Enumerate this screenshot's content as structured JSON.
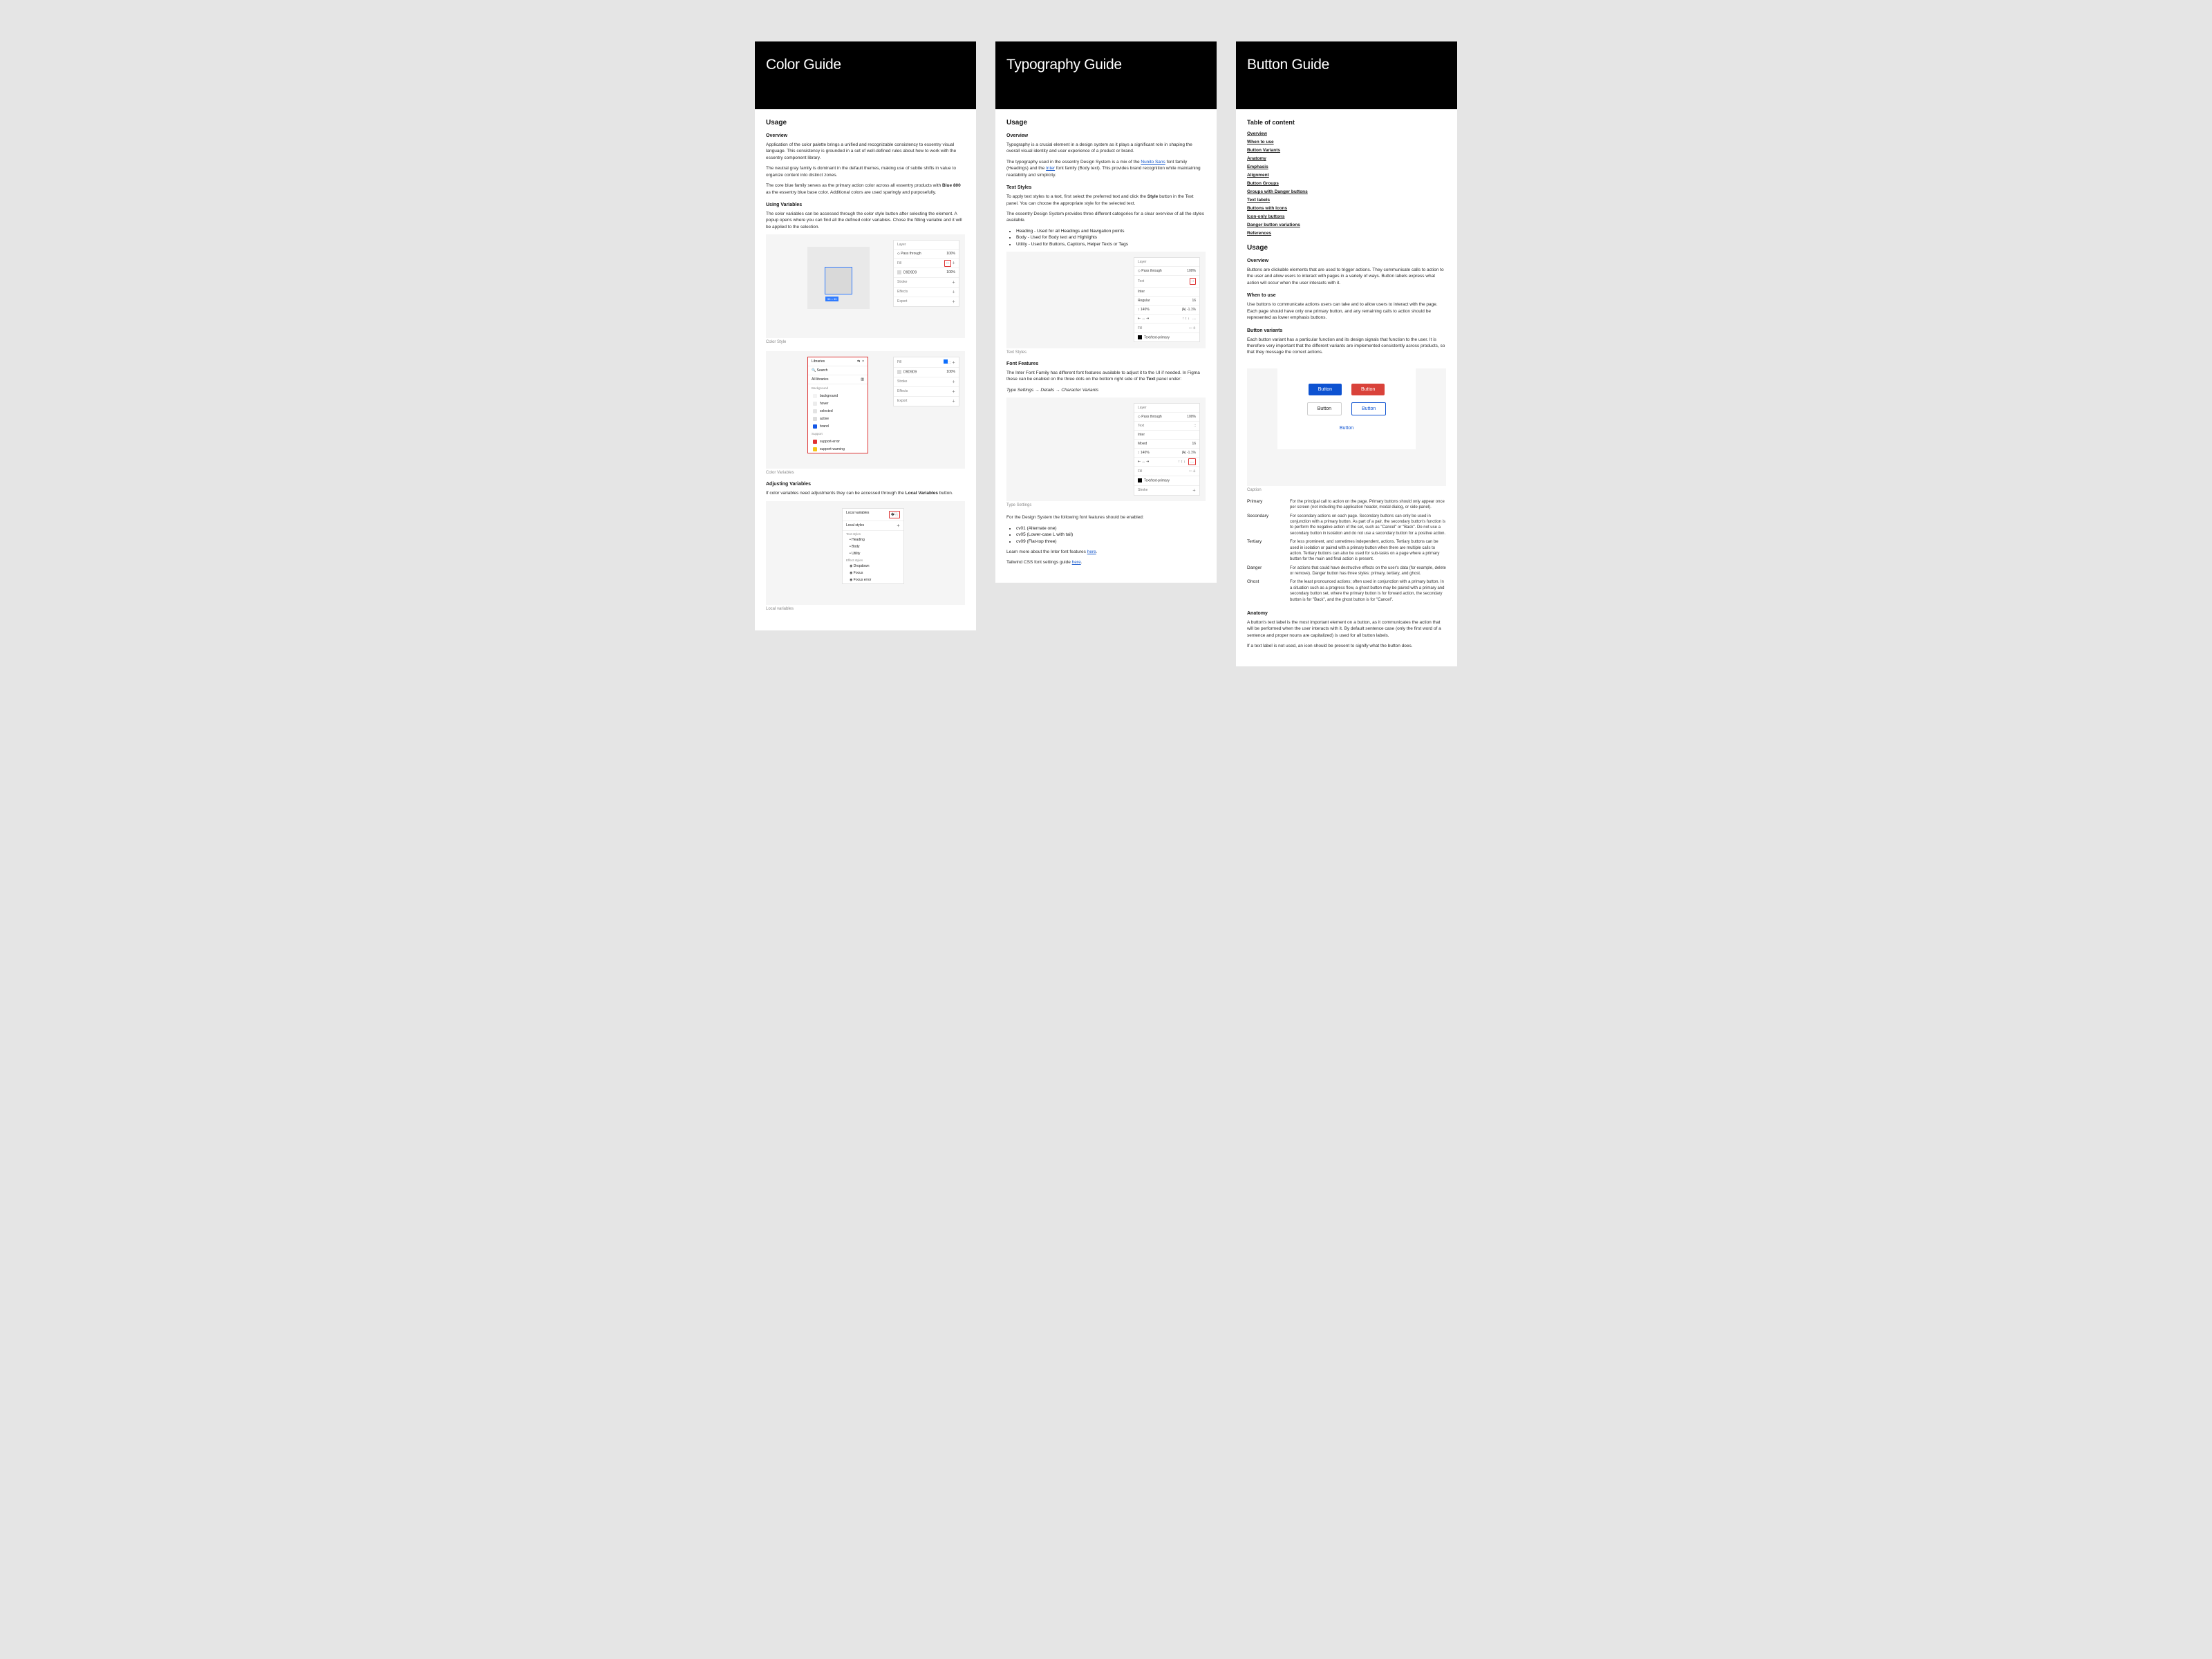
{
  "pages": {
    "color": {
      "title": "Color Guide"
    },
    "typo": {
      "title": "Typography Guide"
    },
    "button": {
      "title": "Button Guide"
    }
  },
  "color": {
    "h_usage": "Usage",
    "h_overview": "Overview",
    "p_overview1": "Application of the color palette brings a unified and recognizable consistency to essentry visual language. This consistency is grounded in a set of well-defined rules about how to work with the essentry component library.",
    "p_overview2": "The neutral gray family is dominant in the default themes, making use of subtle shifts in value to organize content into distinct zones.",
    "p_overview3a": "The core blue family serves as the primary action color across all essentry products with ",
    "p_overview3b": "Blue 800",
    "p_overview3c": " as the essentry blue base color. Additional colors are used sparingly and purposefully.",
    "h_vars": "Using Variables",
    "p_vars": "The color variables can be accessed through the color style button after selecting the element. A popup opens where you can find all the defined color variables. Chose the fitting variable and it will be applied to the selection.",
    "cap1": "Color Style",
    "cap2": "Color Variables",
    "h_adj": "Adjusting Variables",
    "p_adj_a": "If color variables need adjustments they can be accessed through the ",
    "p_adj_b": "Local Variables",
    "p_adj_c": " button.",
    "cap3": "Local variables",
    "panel": {
      "layer": "Layer",
      "pass": "Pass through",
      "pass_val": "100%",
      "fill": "Fill",
      "fill_hex": "D9D9D9",
      "fill_pct": "100%",
      "stroke": "Stroke",
      "effects": "Effects",
      "export": "Export",
      "sel_tag": "55 × 55"
    },
    "libs": {
      "title": "Libraries",
      "search": "Search",
      "all": "All libraries",
      "sec_bg": "Background",
      "i_bg": "background",
      "i_hover": "hover",
      "i_sel": "selected",
      "i_active": "active",
      "i_brand": "brand",
      "sec_support": "Support",
      "i_err": "support-error",
      "i_warn": "support-warning"
    },
    "local": {
      "title": "Local variables",
      "styles": "Local styles",
      "g_text": "Text styles",
      "t1": "Heading",
      "t2": "Body",
      "t3": "Utility",
      "g_eff": "Effect styles",
      "e1": "Dropdown",
      "e2": "Focus",
      "e3": "Focus error"
    }
  },
  "typo": {
    "h_usage": "Usage",
    "h_overview": "Overview",
    "p_overview": "Typography is a crucial element in a design system as it plays a significant role in shaping the overall visual identity and user experience of a product or brand.",
    "p_mix_a": "The typography used in the essentry Design System is a mix of the ",
    "p_mix_link1": "Nunito Sans",
    "p_mix_b": " font family (Headings) and the ",
    "p_mix_link2": "Inter",
    "p_mix_c": " font family (Body text). This provides brand recognition while maintaining readability and simplicity.",
    "h_styles": "Text Styles",
    "p_styles_a": "To apply text styles to a text, first select the preferred text and click the ",
    "p_styles_b": "Style",
    "p_styles_c": " button in the Text panel. You can choose the appropriate style for the selected text.",
    "p_styles2": "The essentry Design System provides three different categories for a clear overview of all the styles available.",
    "li1": "Heading - Used for all Headings and Navigation points",
    "li2": "Body - Used for Body text and Highlights",
    "li3": "Utility - Used for Buttons, Captions, Helper Texts or Tags",
    "cap1": "Text Styles",
    "h_feat": "Font Features",
    "p_feat_a": "The Inter Font Family has different font features available to adjust it to the UI if needed. In Figma these can be enabled on the three dots on the bottom right side of the ",
    "p_feat_b": "Text",
    "p_feat_c": " panel under:",
    "p_path": "Type Settings → Details → Character Variants",
    "cap2": "Type Settings",
    "p_enable": "For the Design System the following font features should be enabled:",
    "f1": "cv01 (Alternate one)",
    "f2": "cv05 (Lower-case L with tail)",
    "f3": "cv09 (Flat-top three)",
    "p_learn_a": "Learn more about the Inter font features ",
    "p_learn_b": "here",
    "p_tail_a": "Tailwind CSS font settings guide ",
    "p_tail_b": "here",
    "panel": {
      "layer": "Layer",
      "pass": "Pass through",
      "pass_val": "100%",
      "text": "Text",
      "font": "Inter",
      "weight": "Regular",
      "size": "16",
      "lh": "140%",
      "ls": "-1.1%",
      "fill": "Fill",
      "fill_name": "Text/text-primary",
      "stroke": "Stroke",
      "mixed": "Mixed"
    }
  },
  "button": {
    "h_toc": "Table of content",
    "toc": [
      "Overview",
      "When to use",
      "Button Variants",
      "Anatomy",
      "Emphasis",
      "Alignment",
      "Button Groups",
      "Groups with Danger buttons",
      "Text labels",
      "Buttons with Icons",
      "Icon-only buttons",
      "Danger button variations",
      "References"
    ],
    "h_usage": "Usage",
    "h_overview": "Overview",
    "p_overview": "Buttons are clickable elements that are used to trigger actions. They communicate calls to action to the user and allow users to interact with pages in a variety of ways. Button labels express what action will occur when the user interacts with it.",
    "h_when": "When to use",
    "p_when": "Use buttons to communicate actions users can take and to allow users to interact with the page. Each page should have only one primary button, and any remaining calls to action should be represented as lower emphasis buttons.",
    "h_variants": "Button variants",
    "p_variants": "Each button variant has a particular function and its design signals that function to the user. It is therefore very important that the different variants are implemented consistently across products, so that they message the correct actions.",
    "label": "Button",
    "cap": "Caption",
    "defs": {
      "Primary": "For the principal call to action on the page. Primary buttons should only appear once per screen (not including the application header, modal dialog, or side panel).",
      "Secondary": "For secondary actions on each page. Secondary buttons can only be used in conjunction with a primary button. As part of a pair, the secondary button's function is to perform the negative action of the set, such as \"Cancel\" or \"Back\". Do not use a secondary button in isolation and do not use a secondary button for a positive action.",
      "Tertiary": "For less prominent, and sometimes independent, actions. Tertiary buttons can be used in isolation or paired with a primary button when there are multiple calls to action. Tertiary buttons can also be used for sub-tasks on a page where a primary button for the main and final action is present.",
      "Danger": "For actions that could have destructive effects on the user's data (for example, delete or remove). Danger button has three styles: primary, tertiary, and ghost.",
      "Ghost": "For the least pronounced actions; often used in conjunction with a primary button. In a situation such as a progress flow, a ghost button may be paired with a primary and secondary button set, where the primary button is for forward action, the secondary button is for \"Back\", and the ghost button is for \"Cancel\"."
    },
    "h_anatomy": "Anatomy",
    "p_anat1": "A button's text label is the most important element on a button, as it communicates the action that will be performed when the user interacts with it. By default sentence case (only the first word of a sentence and proper nouns are capitalized) is used for all button labels.",
    "p_anat2": "If a text label is not used, an icon should be present to signify what the button does."
  },
  "colors": {
    "primary": "#0d52d1",
    "danger": "#d9423a",
    "brandswatch": "#1457e6",
    "err": "#e03131",
    "warn": "#f5c518"
  }
}
